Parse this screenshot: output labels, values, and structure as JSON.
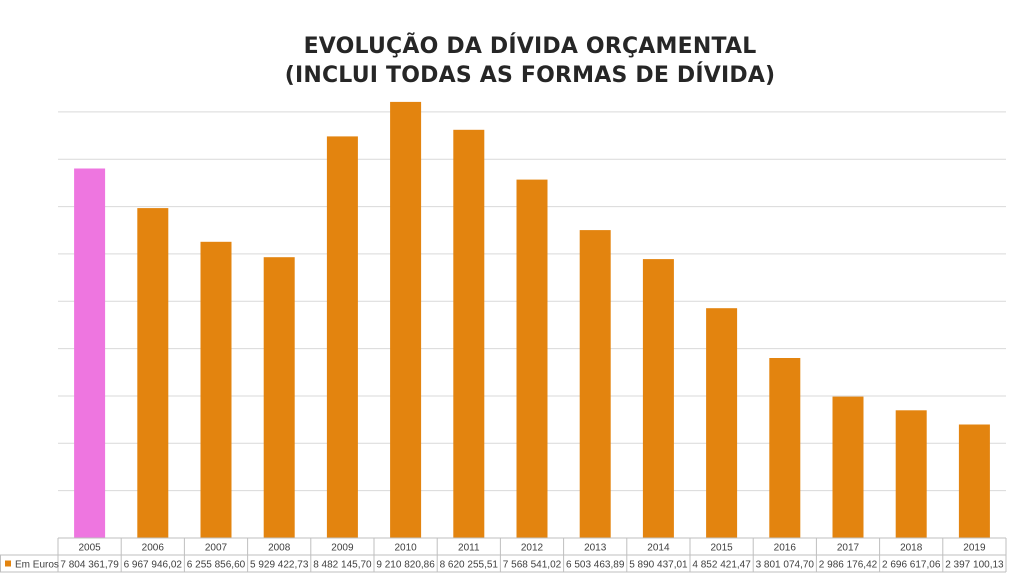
{
  "chart_data": {
    "type": "bar",
    "title_line1": "EVOLUÇÃO DA DÍVIDA ORÇAMENTAL",
    "title_line2": "(INCLUI TODAS AS FORMAS DE DÍVIDA)",
    "categories": [
      "2005",
      "2006",
      "2007",
      "2008",
      "2009",
      "2010",
      "2011",
      "2012",
      "2013",
      "2014",
      "2015",
      "2016",
      "2017",
      "2018",
      "2019"
    ],
    "series": [
      {
        "name": "Em Euros",
        "values": [
          7804361.79,
          6967946.02,
          6255856.6,
          5929422.73,
          8482145.7,
          9210820.86,
          8620255.51,
          7568541.02,
          6503463.89,
          5890437.01,
          4852421.47,
          3801074.7,
          2986176.42,
          2696617.06,
          2397100.13
        ],
        "value_labels": [
          "7 804 361,79",
          "6 967 946,02",
          "6 255 856,60",
          "5 929 422,73",
          "8 482 145,70",
          "9 210 820,86",
          "8 620 255,51",
          "7 568 541,02",
          "6 503 463,89",
          "5 890 437,01",
          "4 852 421,47",
          "3 801 074,70",
          "2 986 176,42",
          "2 696 617,06",
          "2 397 100,13"
        ],
        "color": "#E3840F",
        "highlight_index": 0,
        "highlight_color": "#EE76E0"
      }
    ],
    "ylim": [
      0,
      9000000
    ],
    "y_gridline_step": 1000000,
    "y_tick_labels_shown": false,
    "grid": true,
    "legend": "data-table-below"
  }
}
